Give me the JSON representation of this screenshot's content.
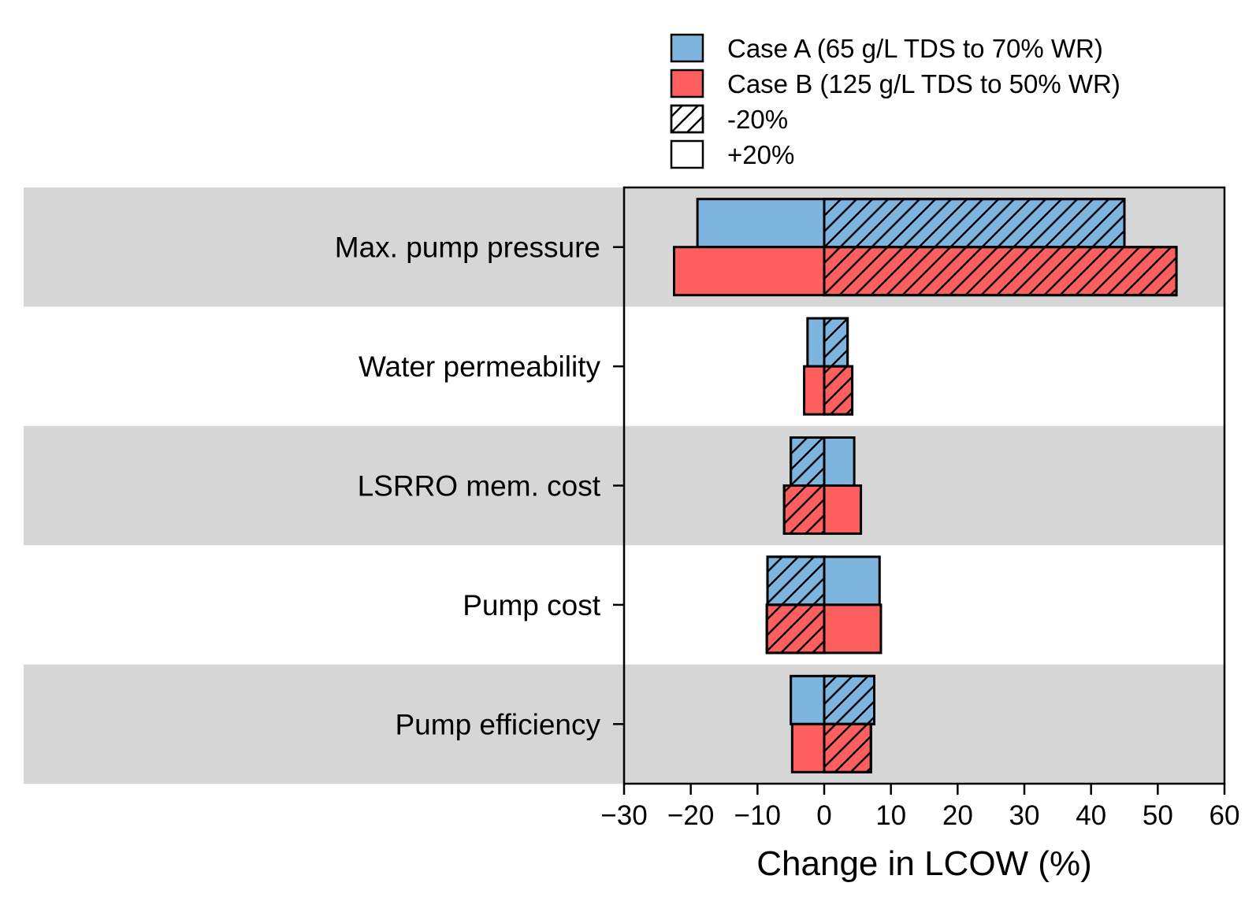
{
  "chart_data": {
    "type": "bar",
    "orientation": "horizontal",
    "subtype": "tornado",
    "title": "",
    "xlabel": "Change in LCOW (%)",
    "ylabel": "",
    "xlim": [
      -30,
      60
    ],
    "xticks": [
      -30,
      -20,
      -10,
      0,
      10,
      20,
      30,
      40,
      50,
      60
    ],
    "xtick_labels": [
      "−30",
      "−20",
      "−10",
      "0",
      "10",
      "20",
      "30",
      "40",
      "50",
      "60"
    ],
    "categories": [
      "Max. pump pressure",
      "Water permeability",
      "LSRRO mem. cost",
      "Pump cost",
      "Pump efficiency"
    ],
    "legend_position": "top-right, above plot",
    "legend": [
      {
        "label": "Case A (65 g/L TDS to 70% WR)",
        "kind": "series",
        "color_key": "case_a"
      },
      {
        "label": "Case B (125 g/L TDS to 50% WR)",
        "kind": "series",
        "color_key": "case_b"
      },
      {
        "label": "-20%",
        "kind": "hatched"
      },
      {
        "label": "+20%",
        "kind": "plain"
      }
    ],
    "series": [
      {
        "name": "Case A (65 g/L TDS to 70% WR)",
        "color_key": "case_a",
        "minus20": [
          45,
          3.5,
          -5,
          -8.5,
          7.5
        ],
        "plus20": [
          -19,
          -2.5,
          4.5,
          8.3,
          -5
        ]
      },
      {
        "name": "Case B (125 g/L TDS to 50% WR)",
        "color_key": "case_b",
        "minus20": [
          52.8,
          4.2,
          -6,
          -8.6,
          7
        ],
        "plus20": [
          -22.5,
          -3,
          5.5,
          8.5,
          -4.8
        ]
      }
    ]
  },
  "colors": {
    "case_a": "#7eb5df",
    "case_b": "#fd5f5f",
    "band": "#d6d6d6",
    "edge": "#000000"
  }
}
